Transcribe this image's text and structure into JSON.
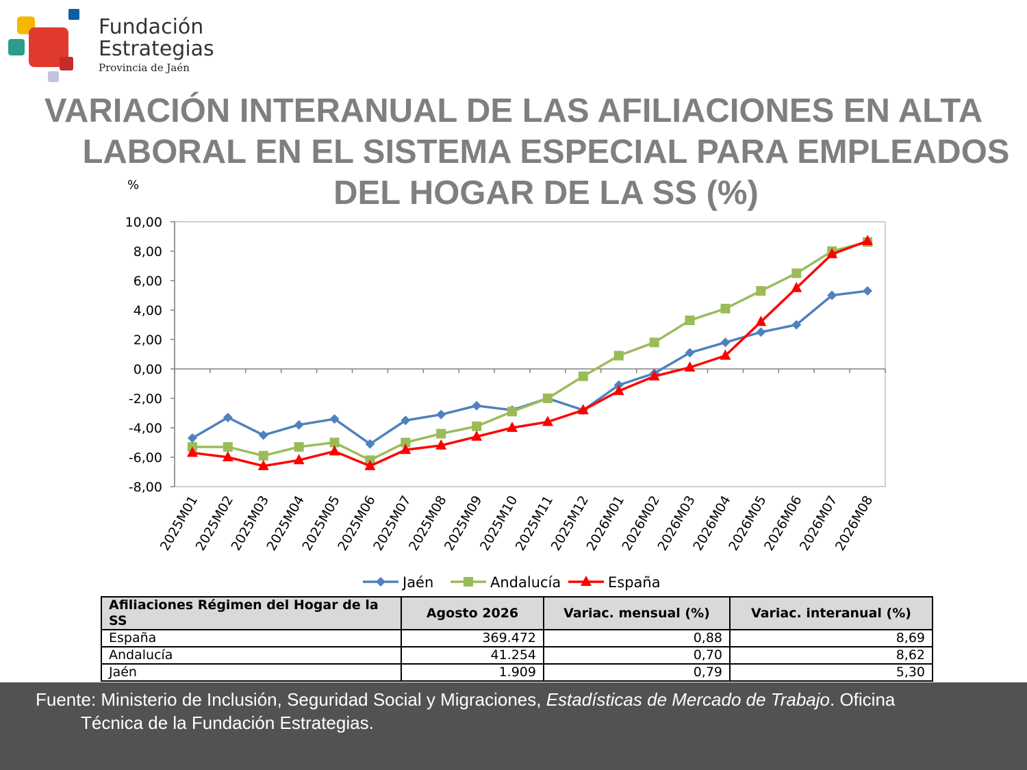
{
  "logo": {
    "line1": "Fundación",
    "line2": "Estrategias",
    "line3": "Provincia de Jaén",
    "colors": [
      "#f5b800",
      "#e03a2f",
      "#0b5fa5",
      "#2a9d8f",
      "#c62a2a",
      "#c6c2e0"
    ]
  },
  "title": {
    "line1": "VARIACIÓN INTERANUAL DE LAS AFILIACIONES EN ALTA",
    "line2": "LABORAL EN EL SISTEMA ESPECIAL PARA EMPLEADOS",
    "line3": "DEL HOGAR DE LA SS (%)"
  },
  "unit_label": "%",
  "chart_data": {
    "type": "line",
    "categories": [
      "2025M01",
      "2025M02",
      "2025M03",
      "2025M04",
      "2025M05",
      "2025M06",
      "2025M07",
      "2025M08",
      "2025M09",
      "2025M10",
      "2025M11",
      "2025M12",
      "2026M01",
      "2026M02",
      "2026M03",
      "2026M04",
      "2026M05",
      "2026M06",
      "2026M07",
      "2026M08"
    ],
    "ylim": [
      -8,
      10
    ],
    "yticks": [
      "10,00",
      "8,00",
      "6,00",
      "4,00",
      "2,00",
      "0,00",
      "-2,00",
      "-4,00",
      "-6,00",
      "-8,00"
    ],
    "ytick_values": [
      10,
      8,
      6,
      4,
      2,
      0,
      -2,
      -4,
      -6,
      -8
    ],
    "legend_position": "bottom",
    "grid": false,
    "series": [
      {
        "name": "Jaén",
        "color": "#4f81bd",
        "marker": "diamond",
        "values": [
          -4.7,
          -3.3,
          -4.5,
          -3.8,
          -3.4,
          -5.1,
          -3.5,
          -3.1,
          -2.5,
          -2.8,
          -2.0,
          -2.8,
          -1.1,
          -0.3,
          1.1,
          1.8,
          2.5,
          3.0,
          5.0,
          5.3
        ]
      },
      {
        "name": "Andalucía",
        "color": "#9bbb59",
        "marker": "square",
        "values": [
          -5.3,
          -5.3,
          -5.9,
          -5.3,
          -5.0,
          -6.2,
          -5.0,
          -4.4,
          -3.9,
          -2.9,
          -2.0,
          -0.5,
          0.9,
          1.8,
          3.3,
          4.1,
          5.3,
          6.5,
          8.0,
          8.62
        ]
      },
      {
        "name": "España",
        "color": "#ff0000",
        "marker": "triangle",
        "values": [
          -5.7,
          -6.0,
          -6.6,
          -6.2,
          -5.6,
          -6.6,
          -5.5,
          -5.2,
          -4.6,
          -4.0,
          -3.6,
          -2.8,
          -1.5,
          -0.5,
          0.1,
          0.9,
          3.2,
          5.5,
          7.8,
          8.69
        ]
      }
    ]
  },
  "table": {
    "headers": [
      "Afiliaciones Régimen del Hogar de la SS",
      "Agosto 2026",
      "Variac. mensual (%)",
      "Variac. interanual (%)"
    ],
    "rows": [
      [
        "España",
        "369.472",
        "0,88",
        "8,69"
      ],
      [
        "Andalucía",
        "41.254",
        "0,70",
        "8,62"
      ],
      [
        "Jaén",
        "1.909",
        "0,79",
        "5,30"
      ]
    ]
  },
  "footer": {
    "prefix": "Fuente: Ministerio de Inclusión, Seguridad Social y Migraciones, ",
    "italic": "Estadísticas de Mercado de Trabajo",
    "suffix": ". Oficina",
    "line2": "Técnica de la Fundación Estrategias."
  }
}
